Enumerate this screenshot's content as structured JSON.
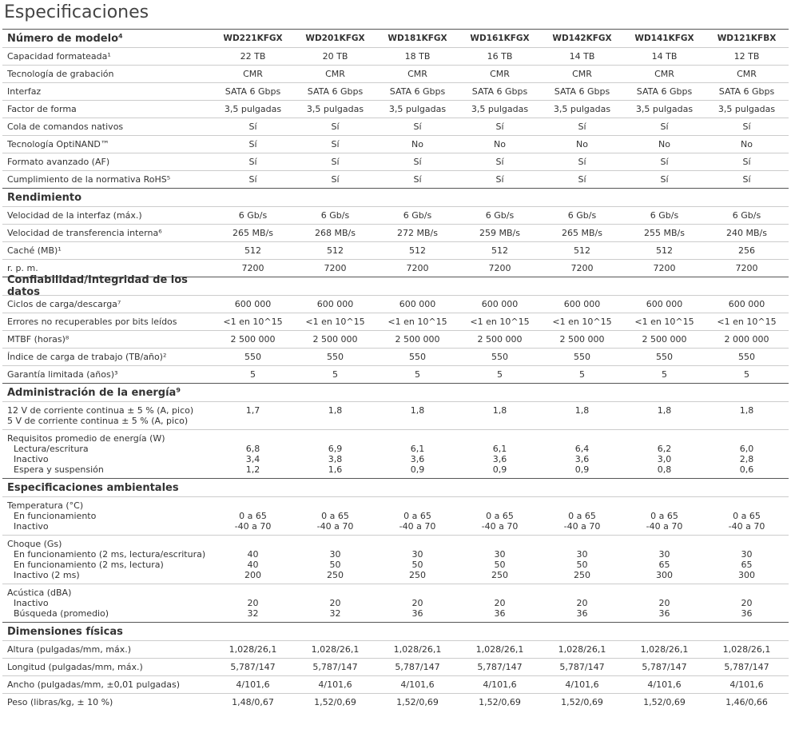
{
  "title": "Especificaciones",
  "sections": [
    {
      "title": "Número de modelo⁴",
      "models": [
        "WD221KFGX",
        "WD201KFGX",
        "WD181KFGX",
        "WD161KFGX",
        "WD142KFGX",
        "WD141KFGX",
        "WD121KFBX"
      ],
      "rows": [
        {
          "label": "Capacidad formateada¹",
          "values": [
            "22 TB",
            "20 TB",
            "18 TB",
            "16 TB",
            "14 TB",
            "14 TB",
            "12 TB"
          ]
        },
        {
          "label": "Tecnología de grabación",
          "values": [
            "CMR",
            "CMR",
            "CMR",
            "CMR",
            "CMR",
            "CMR",
            "CMR"
          ]
        },
        {
          "label": "Interfaz",
          "values": [
            "SATA 6 Gbps",
            "SATA 6 Gbps",
            "SATA 6 Gbps",
            "SATA 6 Gbps",
            "SATA 6 Gbps",
            "SATA 6 Gbps",
            "SATA 6 Gbps"
          ]
        },
        {
          "label": "Factor de forma",
          "values": [
            "3,5 pulgadas",
            "3,5 pulgadas",
            "3,5 pulgadas",
            "3,5 pulgadas",
            "3,5 pulgadas",
            "3,5 pulgadas",
            "3,5 pulgadas"
          ]
        },
        {
          "label": "Cola de comandos nativos",
          "values": [
            "Sí",
            "Sí",
            "Sí",
            "Sí",
            "Sí",
            "Sí",
            "Sí"
          ]
        },
        {
          "label": "Tecnología OptiNAND™",
          "values": [
            "Sí",
            "Sí",
            "No",
            "No",
            "No",
            "No",
            "No"
          ]
        },
        {
          "label": "Formato avanzado (AF)",
          "values": [
            "Sí",
            "Sí",
            "Sí",
            "Sí",
            "Sí",
            "Sí",
            "Sí"
          ]
        },
        {
          "label": "Cumplimiento de la normativa RoHS⁵",
          "values": [
            "Sí",
            "Sí",
            "Sí",
            "Sí",
            "Sí",
            "Sí",
            "Sí"
          ]
        }
      ]
    },
    {
      "title": "Rendimiento",
      "rows": [
        {
          "label": "Velocidad de la interfaz (máx.)",
          "values": [
            "6 Gb/s",
            "6 Gb/s",
            "6 Gb/s",
            "6 Gb/s",
            "6 Gb/s",
            "6 Gb/s",
            "6 Gb/s"
          ]
        },
        {
          "label": "Velocidad de transferencia interna⁶",
          "values": [
            "265 MB/s",
            "268 MB/s",
            "272 MB/s",
            "259 MB/s",
            "265 MB/s",
            "255 MB/s",
            "240 MB/s"
          ]
        },
        {
          "label": "Caché (MB)¹",
          "values": [
            "512",
            "512",
            "512",
            "512",
            "512",
            "512",
            "256"
          ]
        },
        {
          "label": "r. p. m.",
          "values": [
            "7200",
            "7200",
            "7200",
            "7200",
            "7200",
            "7200",
            "7200"
          ]
        }
      ]
    },
    {
      "title": "Confiabilidad/Integridad de los datos",
      "rows": [
        {
          "label": "Ciclos de carga/descarga⁷",
          "values": [
            "600 000",
            "600 000",
            "600 000",
            "600 000",
            "600 000",
            "600 000",
            "600 000"
          ]
        },
        {
          "label": "Errores no recuperables por bits leídos",
          "values": [
            "<1 en 10^15",
            "<1 en 10^15",
            "<1 en 10^15",
            "<1 en 10^15",
            "<1 en 10^15",
            "<1 en 10^15",
            "<1 en 10^15"
          ]
        },
        {
          "label": "MTBF (horas)⁸",
          "values": [
            "2 500 000",
            "2 500 000",
            "2 500 000",
            "2 500 000",
            "2 500 000",
            "2 500 000",
            "2 000 000"
          ]
        },
        {
          "label": "Índice de carga de trabajo (TB/año)²",
          "values": [
            "550",
            "550",
            "550",
            "550",
            "550",
            "550",
            "550"
          ]
        },
        {
          "label": "Garantía limitada (años)³",
          "values": [
            "5",
            "5",
            "5",
            "5",
            "5",
            "5",
            "5"
          ]
        }
      ]
    },
    {
      "title": "Administración de la energía⁹",
      "rows": [
        {
          "labels": [
            "12 V de corriente continua ± 5 % (A, pico)",
            "5 V de corriente continua ± 5 % (A, pico)"
          ],
          "values": [
            "1,7",
            "1,8",
            "1,8",
            "1,8",
            "1,8",
            "1,8",
            "1,8"
          ]
        },
        {
          "label": "Requisitos promedio de energía (W)",
          "sublabels": [
            "Lectura/escritura",
            "Inactivo",
            "Espera y suspensión"
          ],
          "values": [
            [
              "6,8",
              "3,4",
              "1,2"
            ],
            [
              "6,9",
              "3,8",
              "1,6"
            ],
            [
              "6,1",
              "3,6",
              "0,9"
            ],
            [
              "6,1",
              "3,6",
              "0,9"
            ],
            [
              "6,4",
              "3,6",
              "0,9"
            ],
            [
              "6,2",
              "3,0",
              "0,8"
            ],
            [
              "6,0",
              "2,8",
              "0,6"
            ]
          ]
        }
      ]
    },
    {
      "title": "Especificaciones ambientales",
      "rows": [
        {
          "label": "Temperatura (°C)",
          "sublabels": [
            "En funcionamiento",
            "Inactivo"
          ],
          "values": [
            [
              "0 a 65",
              "-40 a 70"
            ],
            [
              "0 a 65",
              "-40 a 70"
            ],
            [
              "0 a 65",
              "-40 a 70"
            ],
            [
              "0 a 65",
              "-40 a 70"
            ],
            [
              "0 a 65",
              "-40 a 70"
            ],
            [
              "0 a 65",
              "-40 a 70"
            ],
            [
              "0 a 65",
              "-40 a 70"
            ]
          ]
        },
        {
          "label": "Choque (Gs)",
          "sublabels": [
            "En funcionamiento (2 ms, lectura/escritura)",
            "En funcionamiento (2 ms, lectura)",
            "Inactivo (2 ms)"
          ],
          "values": [
            [
              "40",
              "40",
              "200"
            ],
            [
              "30",
              "50",
              "250"
            ],
            [
              "30",
              "50",
              "250"
            ],
            [
              "30",
              "50",
              "250"
            ],
            [
              "30",
              "50",
              "250"
            ],
            [
              "30",
              "65",
              "300"
            ],
            [
              "30",
              "65",
              "300"
            ]
          ]
        },
        {
          "label": "Acústica (dBA)",
          "sublabels": [
            "Inactivo",
            "Búsqueda (promedio)"
          ],
          "values": [
            [
              "20",
              "32"
            ],
            [
              "20",
              "32"
            ],
            [
              "20",
              "36"
            ],
            [
              "20",
              "36"
            ],
            [
              "20",
              "36"
            ],
            [
              "20",
              "36"
            ],
            [
              "20",
              "36"
            ]
          ]
        }
      ]
    },
    {
      "title": "Dimensiones físicas",
      "rows": [
        {
          "label": "Altura (pulgadas/mm, máx.)",
          "values": [
            "1,028/26,1",
            "1,028/26,1",
            "1,028/26,1",
            "1,028/26,1",
            "1,028/26,1",
            "1,028/26,1",
            "1,028/26,1"
          ]
        },
        {
          "label": "Longitud (pulgadas/mm, máx.)",
          "values": [
            "5,787/147",
            "5,787/147",
            "5,787/147",
            "5,787/147",
            "5,787/147",
            "5,787/147",
            "5,787/147"
          ]
        },
        {
          "label": "Ancho (pulgadas/mm, ±0,01 pulgadas)",
          "values": [
            "4/101,6",
            "4/101,6",
            "4/101,6",
            "4/101,6",
            "4/101,6",
            "4/101,6",
            "4/101,6"
          ]
        },
        {
          "label": "Peso (libras/kg, ± 10 %)",
          "values": [
            "1,48/0,67",
            "1,52/0,69",
            "1,52/0,69",
            "1,52/0,69",
            "1,52/0,69",
            "1,52/0,69",
            "1,46/0,66"
          ]
        }
      ]
    }
  ]
}
